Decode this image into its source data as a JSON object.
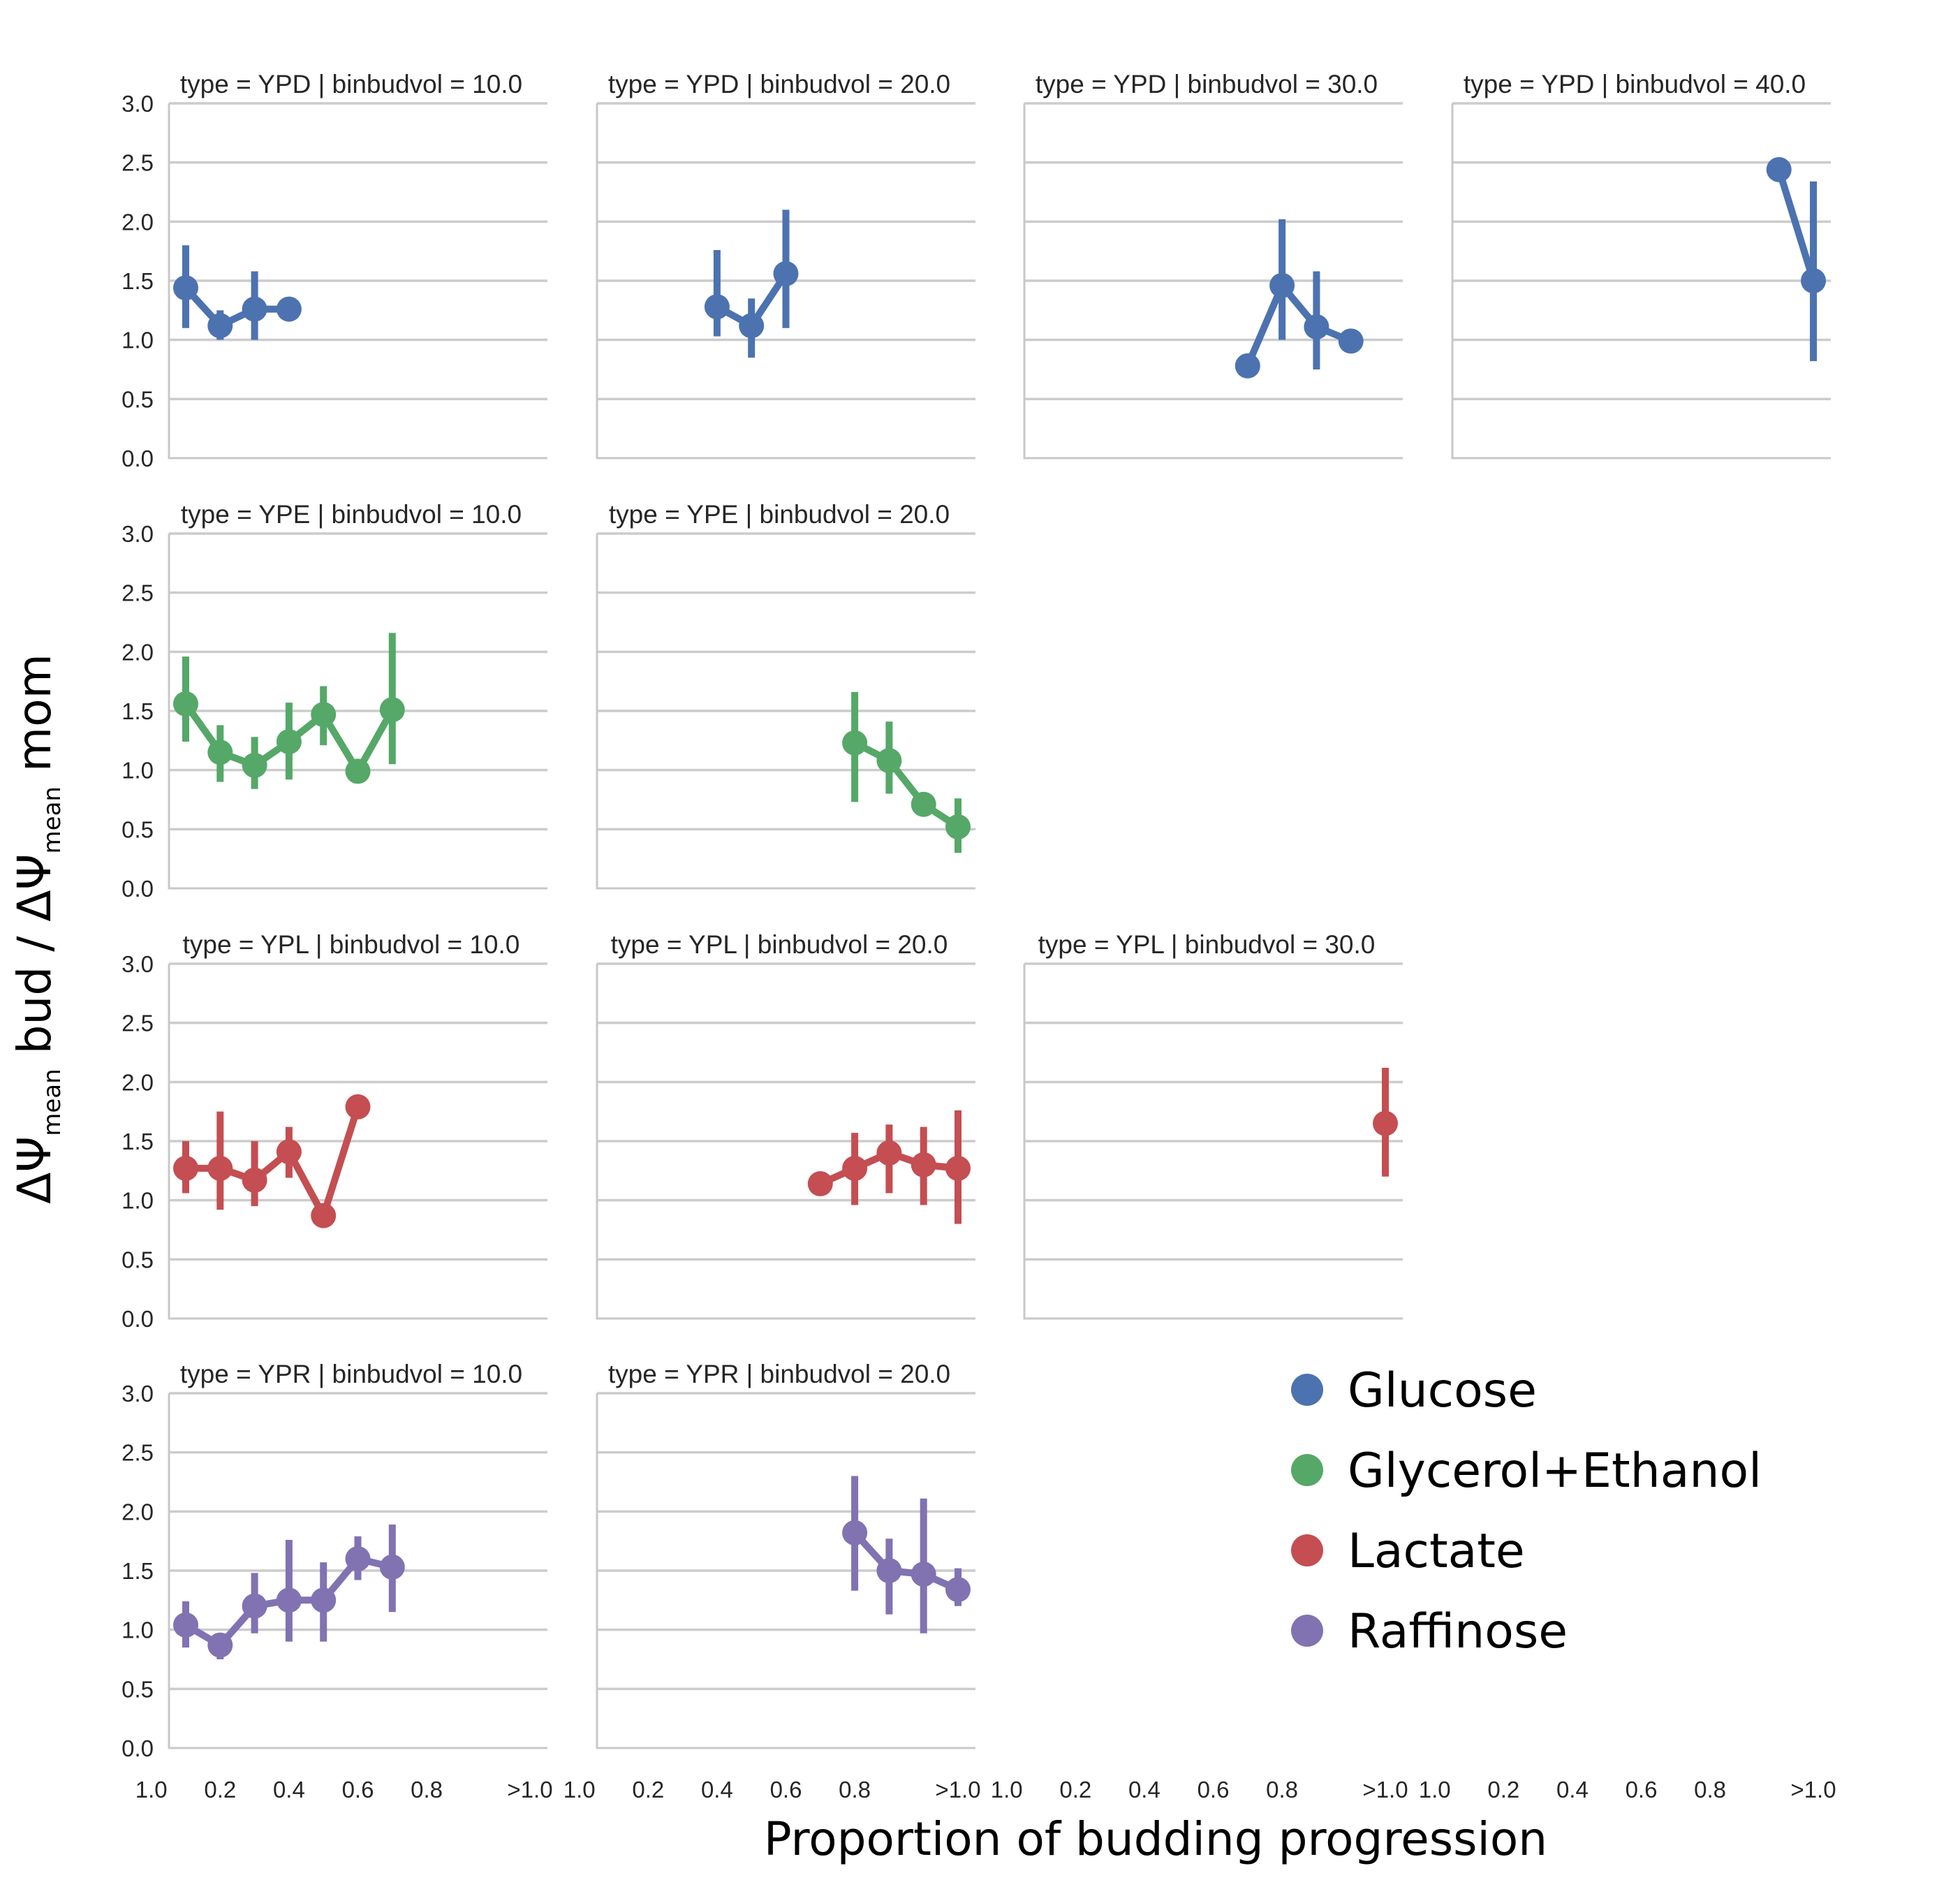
{
  "chart_data": {
    "type": "line",
    "kind": "point plot with error bars (facet grid)",
    "xlabel": "Proportion of budding progression",
    "ylabel": {
      "delta": "ΔΨ",
      "sub": "mean",
      "part1": " bud / ",
      "part2": " mom"
    },
    "x_categories": [
      0.1,
      0.2,
      0.3,
      0.4,
      0.5,
      0.6,
      0.7,
      0.8,
      0.9,
      1.0,
      ">1.0"
    ],
    "x_tick_labels": [
      "0.2",
      "0.4",
      "0.6",
      "0.8",
      "1.0",
      ">1.0"
    ],
    "ylim": [
      0,
      3
    ],
    "y_ticks": [
      "0.0",
      "0.5",
      "1.0",
      "1.5",
      "2.0",
      "2.5",
      "3.0"
    ],
    "grid": "horizontal",
    "legend": {
      "position": "bottom-right",
      "entries": [
        {
          "label": "Glucose",
          "color": "#4c72b0"
        },
        {
          "label": "Glycerol+Ethanol",
          "color": "#55a868"
        },
        {
          "label": "Lactate",
          "color": "#c44e52"
        },
        {
          "label": "Raffinose",
          "color": "#8172b2"
        }
      ]
    },
    "panels": [
      {
        "row": 0,
        "col": 0,
        "title": "type = YPD | binbudvol = 10.0",
        "color": "#4c72b0",
        "points": [
          {
            "x": 0.1,
            "y": 1.44,
            "lo": 1.1,
            "hi": 1.8
          },
          {
            "x": 0.2,
            "y": 1.12,
            "lo": 1.0,
            "hi": 1.25
          },
          {
            "x": 0.3,
            "y": 1.26,
            "lo": 1.0,
            "hi": 1.58
          },
          {
            "x": 0.4,
            "y": 1.26,
            "lo": null,
            "hi": null
          }
        ]
      },
      {
        "row": 0,
        "col": 1,
        "title": "type = YPD | binbudvol = 20.0",
        "color": "#4c72b0",
        "points": [
          {
            "x": 0.4,
            "y": 1.28,
            "lo": 1.03,
            "hi": 1.76
          },
          {
            "x": 0.5,
            "y": 1.12,
            "lo": 0.85,
            "hi": 1.35
          },
          {
            "x": 0.6,
            "y": 1.56,
            "lo": 1.1,
            "hi": 2.1
          }
        ]
      },
      {
        "row": 0,
        "col": 2,
        "title": "type = YPD | binbudvol = 30.0",
        "color": "#4c72b0",
        "points": [
          {
            "x": 0.7,
            "y": 0.78,
            "lo": null,
            "hi": null
          },
          {
            "x": 0.8,
            "y": 1.46,
            "lo": 1.0,
            "hi": 2.02
          },
          {
            "x": 0.9,
            "y": 1.11,
            "lo": 0.75,
            "hi": 1.58
          },
          {
            "x": 1.0,
            "y": 0.99,
            "lo": null,
            "hi": null
          }
        ]
      },
      {
        "row": 0,
        "col": 3,
        "title": "type = YPD | binbudvol = 40.0",
        "color": "#4c72b0",
        "points": [
          {
            "x": 1.0,
            "y": 2.44,
            "lo": null,
            "hi": null
          },
          {
            "x": ">1.0",
            "y": 1.5,
            "lo": 0.82,
            "hi": 2.34
          }
        ]
      },
      {
        "row": 1,
        "col": 0,
        "title": "type = YPE | binbudvol = 10.0",
        "color": "#55a868",
        "points": [
          {
            "x": 0.1,
            "y": 1.56,
            "lo": 1.24,
            "hi": 1.96
          },
          {
            "x": 0.2,
            "y": 1.15,
            "lo": 0.9,
            "hi": 1.38
          },
          {
            "x": 0.3,
            "y": 1.04,
            "lo": 0.84,
            "hi": 1.28
          },
          {
            "x": 0.4,
            "y": 1.24,
            "lo": 0.92,
            "hi": 1.57
          },
          {
            "x": 0.5,
            "y": 1.47,
            "lo": 1.21,
            "hi": 1.71
          },
          {
            "x": 0.6,
            "y": 0.99,
            "lo": null,
            "hi": null
          },
          {
            "x": 0.7,
            "y": 1.51,
            "lo": 1.05,
            "hi": 2.16
          }
        ]
      },
      {
        "row": 1,
        "col": 1,
        "title": "type = YPE | binbudvol = 20.0",
        "color": "#55a868",
        "points": [
          {
            "x": 0.8,
            "y": 1.23,
            "lo": 0.73,
            "hi": 1.66
          },
          {
            "x": 0.9,
            "y": 1.08,
            "lo": 0.8,
            "hi": 1.41
          },
          {
            "x": 1.0,
            "y": 0.71,
            "lo": 0.65,
            "hi": 0.77
          },
          {
            "x": ">1.0",
            "y": 0.52,
            "lo": 0.3,
            "hi": 0.76
          }
        ]
      },
      {
        "row": 2,
        "col": 0,
        "title": "type = YPL | binbudvol = 10.0",
        "color": "#c44e52",
        "points": [
          {
            "x": 0.1,
            "y": 1.27,
            "lo": 1.06,
            "hi": 1.5
          },
          {
            "x": 0.2,
            "y": 1.27,
            "lo": 0.92,
            "hi": 1.75
          },
          {
            "x": 0.3,
            "y": 1.17,
            "lo": 0.95,
            "hi": 1.5
          },
          {
            "x": 0.4,
            "y": 1.41,
            "lo": 1.19,
            "hi": 1.62
          },
          {
            "x": 0.5,
            "y": 0.87,
            "lo": null,
            "hi": null
          },
          {
            "x": 0.6,
            "y": 1.79,
            "lo": null,
            "hi": null
          }
        ]
      },
      {
        "row": 2,
        "col": 1,
        "title": "type = YPL | binbudvol = 20.0",
        "color": "#c44e52",
        "points": [
          {
            "x": 0.7,
            "y": 1.14,
            "lo": null,
            "hi": null
          },
          {
            "x": 0.8,
            "y": 1.27,
            "lo": 0.96,
            "hi": 1.57
          },
          {
            "x": 0.9,
            "y": 1.4,
            "lo": 1.06,
            "hi": 1.64
          },
          {
            "x": 1.0,
            "y": 1.3,
            "lo": 0.96,
            "hi": 1.62
          },
          {
            "x": ">1.0",
            "y": 1.27,
            "lo": 0.8,
            "hi": 1.76
          }
        ]
      },
      {
        "row": 2,
        "col": 2,
        "title": "type = YPL | binbudvol = 30.0",
        "color": "#c44e52",
        "points": [
          {
            "x": ">1.0",
            "y": 1.65,
            "lo": 1.2,
            "hi": 2.12
          }
        ]
      },
      {
        "row": 3,
        "col": 0,
        "title": "type = YPR | binbudvol = 10.0",
        "color": "#8172b2",
        "points": [
          {
            "x": 0.1,
            "y": 1.04,
            "lo": 0.85,
            "hi": 1.24
          },
          {
            "x": 0.2,
            "y": 0.87,
            "lo": 0.75,
            "hi": 0.97
          },
          {
            "x": 0.3,
            "y": 1.2,
            "lo": 0.97,
            "hi": 1.48
          },
          {
            "x": 0.4,
            "y": 1.25,
            "lo": 0.9,
            "hi": 1.76
          },
          {
            "x": 0.5,
            "y": 1.25,
            "lo": 0.9,
            "hi": 1.57
          },
          {
            "x": 0.6,
            "y": 1.6,
            "lo": 1.42,
            "hi": 1.79
          },
          {
            "x": 0.7,
            "y": 1.53,
            "lo": 1.15,
            "hi": 1.89
          }
        ]
      },
      {
        "row": 3,
        "col": 1,
        "title": "type = YPR | binbudvol = 20.0",
        "color": "#8172b2",
        "points": [
          {
            "x": 0.8,
            "y": 1.82,
            "lo": 1.33,
            "hi": 2.3
          },
          {
            "x": 0.9,
            "y": 1.5,
            "lo": 1.13,
            "hi": 1.77
          },
          {
            "x": 1.0,
            "y": 1.47,
            "lo": 0.97,
            "hi": 2.11
          },
          {
            "x": ">1.0",
            "y": 1.34,
            "lo": 1.2,
            "hi": 1.52
          }
        ]
      }
    ]
  }
}
